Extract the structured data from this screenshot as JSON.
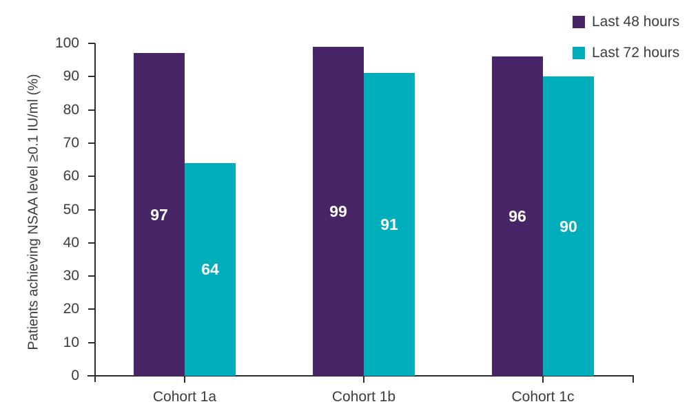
{
  "chart_data": {
    "type": "bar",
    "title": "",
    "xlabel": "",
    "ylabel": "Patients achieving NSAA level ≥0.1 IU/ml (%)",
    "categories": [
      "Cohort 1a",
      "Cohort 1b",
      "Cohort 1c"
    ],
    "series": [
      {
        "name": "Last 48 hours",
        "color": "#482566",
        "values": [
          97,
          99,
          96
        ]
      },
      {
        "name": "Last 72 hours",
        "color": "#00adba",
        "values": [
          64,
          91,
          90
        ]
      }
    ],
    "ylim": [
      0,
      100
    ],
    "yticks": [
      0,
      10,
      20,
      30,
      40,
      50,
      60,
      70,
      80,
      90,
      100
    ],
    "grid": false,
    "legend_position": "top-right",
    "bar_value_labels": true,
    "bar_label_color": "#ffffff"
  },
  "style": {
    "background": "#ffffff",
    "axis_color": "#2d2d2d",
    "text_color": "#3c3c3c"
  }
}
